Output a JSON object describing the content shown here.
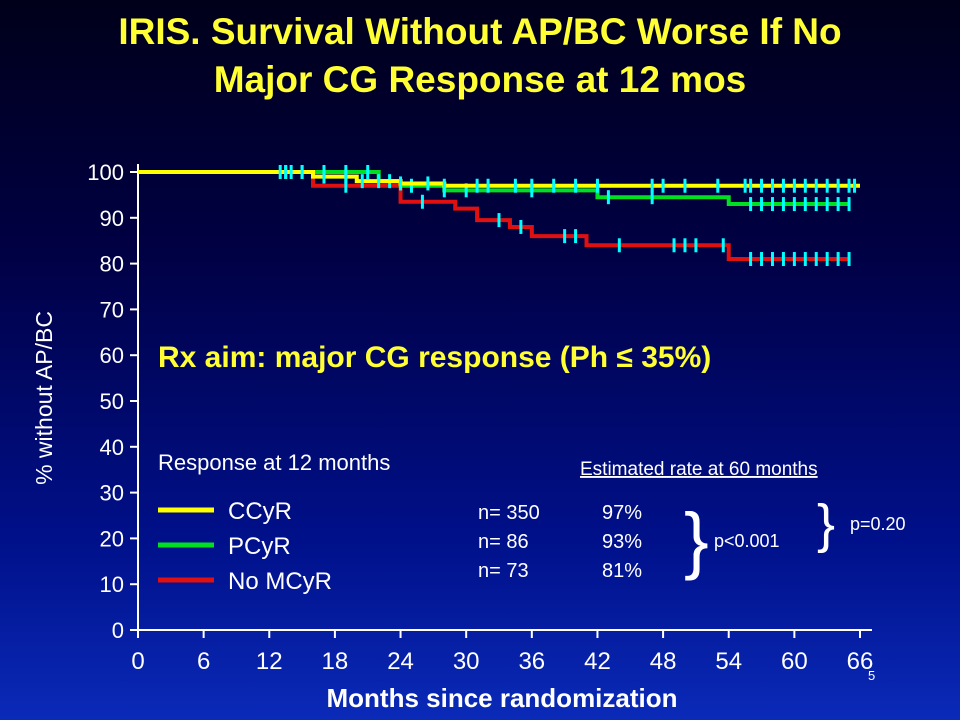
{
  "title": {
    "line1": "IRIS. Survival Without AP/BC Worse If No",
    "line2": "Major CG Response at 12 mos"
  },
  "annotation": "Rx aim: major CG response (Ph ≤ 35%)",
  "legend": {
    "title": "Response at 12 months"
  },
  "estimates": {
    "header": "Estimated rate at 60 months",
    "p_value_1": "p<0.001",
    "p_value_2": "p=0.20",
    "rows": [
      {
        "n": "n= 350",
        "rate": "97%"
      },
      {
        "n": "n=  86",
        "rate": "93%"
      },
      {
        "n": "n=  73",
        "rate": "81%"
      }
    ]
  },
  "slide_number": "5",
  "colors": {
    "CCyR": "#ffff00",
    "PCyR": "#00e020",
    "No MCyR": "#e01010",
    "censor": "#00ffff",
    "title": "#ffff33",
    "text": "#ffffff"
  },
  "chart_data": {
    "type": "line",
    "title": "",
    "xlabel": "Months since randomization",
    "ylabel": "% without AP/BC",
    "xlim": [
      0,
      66
    ],
    "ylim": [
      0,
      100
    ],
    "xticks": [
      0,
      6,
      12,
      18,
      24,
      30,
      36,
      42,
      48,
      54,
      60,
      66
    ],
    "yticks": [
      0,
      10,
      20,
      30,
      40,
      50,
      60,
      70,
      80,
      90,
      100
    ],
    "step": true,
    "legend_position": "bottom-left",
    "series": [
      {
        "name": "CCyR",
        "points": [
          [
            0,
            100
          ],
          [
            15,
            100
          ],
          [
            16,
            99
          ],
          [
            20,
            98
          ],
          [
            24,
            97.5
          ],
          [
            28,
            97
          ],
          [
            66,
            97
          ]
        ],
        "censor_x": [
          13,
          13.5,
          14,
          15,
          17,
          19,
          20.5,
          22,
          24,
          26.5,
          28,
          31,
          32,
          34.5,
          36,
          38,
          40,
          42,
          47,
          48,
          50,
          53,
          55.5,
          56,
          57,
          58,
          59,
          60,
          61,
          62,
          63,
          64,
          65,
          65.5
        ]
      },
      {
        "name": "PCyR",
        "points": [
          [
            0,
            100
          ],
          [
            22,
            100
          ],
          [
            22,
            98
          ],
          [
            24,
            97
          ],
          [
            28,
            96
          ],
          [
            42,
            96
          ],
          [
            42,
            94.5
          ],
          [
            54,
            94.5
          ],
          [
            54,
            93
          ],
          [
            65,
            93
          ]
        ],
        "censor_x": [
          13.5,
          15,
          17,
          19,
          21,
          23,
          25,
          28,
          30,
          36,
          43,
          47,
          56,
          57,
          58,
          59,
          60,
          61,
          62,
          63,
          64,
          65
        ]
      },
      {
        "name": "No MCyR",
        "points": [
          [
            0,
            100
          ],
          [
            16,
            100
          ],
          [
            16,
            97
          ],
          [
            24,
            97
          ],
          [
            24,
            93.5
          ],
          [
            29,
            93.5
          ],
          [
            29,
            92
          ],
          [
            31,
            92
          ],
          [
            31,
            89.5
          ],
          [
            34,
            89.5
          ],
          [
            34,
            88
          ],
          [
            36,
            88
          ],
          [
            36,
            86
          ],
          [
            41,
            86
          ],
          [
            41,
            84
          ],
          [
            54,
            84
          ],
          [
            54,
            81
          ],
          [
            65,
            81
          ]
        ],
        "censor_x": [
          19,
          26,
          33,
          35,
          39,
          40,
          44,
          49,
          50,
          51,
          53.5,
          56,
          57,
          58,
          59,
          60,
          61,
          62,
          63,
          64,
          65
        ]
      }
    ]
  }
}
